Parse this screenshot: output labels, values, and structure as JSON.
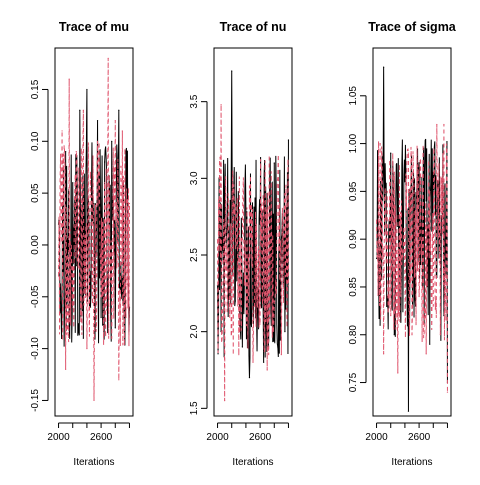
{
  "colors": {
    "chain_1": "#000000",
    "chain_2": "#DF536B",
    "background": "#FFFFFF",
    "axes": "#000000"
  },
  "chart_data": [
    {
      "type": "line",
      "title": "Trace of mu",
      "xlabel": "Iterations",
      "ylabel": "",
      "xlim": [
        1950,
        3050
      ],
      "ylim": [
        -0.165,
        0.19
      ],
      "x_ticks": [
        2000,
        2600
      ],
      "y_ticks": [
        -0.15,
        -0.1,
        -0.05,
        0.0,
        0.05,
        0.1,
        0.15
      ],
      "y_tick_labels": [
        "-0.15",
        "-0.10",
        "-0.05",
        "0.00",
        "0.05",
        "0.10",
        "0.15"
      ],
      "series": [
        {
          "line_style": "solid",
          "color": "#000000",
          "x": [
            2000,
            2050,
            2100,
            2150,
            2200,
            2250,
            2300,
            2350,
            2400,
            2450,
            2500,
            2550,
            2600,
            2650,
            2700,
            2750,
            2800,
            2850,
            2900,
            2950,
            3000
          ],
          "values": [
            0.02,
            -0.05,
            0.09,
            -0.08,
            0.06,
            -0.02,
            0.13,
            -0.09,
            0.15,
            -0.06,
            0.04,
            0.12,
            -0.07,
            0.08,
            -0.04,
            0.1,
            -0.08,
            0.13,
            -0.03,
            0.09,
            -0.06
          ]
        },
        {
          "line_style": "dashed",
          "color": "#DF536B",
          "x": [
            2000,
            2050,
            2100,
            2150,
            2200,
            2250,
            2300,
            2350,
            2400,
            2450,
            2500,
            2550,
            2600,
            2650,
            2700,
            2750,
            2800,
            2850,
            2900,
            2950,
            3000
          ],
          "values": [
            -0.03,
            0.11,
            -0.12,
            0.16,
            -0.06,
            0.09,
            -0.04,
            0.13,
            -0.1,
            0.07,
            -0.15,
            0.1,
            -0.05,
            0.06,
            0.18,
            -0.09,
            0.12,
            -0.13,
            0.11,
            -0.07,
            0.04
          ]
        }
      ]
    },
    {
      "type": "line",
      "title": "Trace of nu",
      "xlabel": "Iterations",
      "ylabel": "",
      "xlim": [
        1950,
        3050
      ],
      "ylim": [
        1.45,
        3.85
      ],
      "x_ticks": [
        2000,
        2600
      ],
      "y_ticks": [
        1.5,
        2.0,
        2.5,
        3.0,
        3.5
      ],
      "y_tick_labels": [
        "1.5",
        "2.0",
        "2.5",
        "3.0",
        "3.5"
      ],
      "series": [
        {
          "line_style": "solid",
          "color": "#000000",
          "x": [
            2000,
            2050,
            2100,
            2150,
            2200,
            2250,
            2300,
            2350,
            2400,
            2450,
            2500,
            2550,
            2600,
            2650,
            2700,
            2750,
            2800,
            2850,
            2900,
            2950,
            3000
          ],
          "values": [
            2.3,
            2.0,
            2.9,
            2.1,
            3.7,
            2.2,
            2.6,
            1.9,
            2.8,
            1.7,
            2.5,
            2.1,
            2.7,
            1.8,
            2.9,
            2.2,
            3.1,
            1.9,
            2.6,
            2.0,
            3.25
          ]
        },
        {
          "line_style": "dashed",
          "color": "#DF536B",
          "x": [
            2000,
            2050,
            2100,
            2150,
            2200,
            2250,
            2300,
            2350,
            2400,
            2450,
            2500,
            2550,
            2600,
            2650,
            2700,
            2750,
            2800,
            2850,
            2900,
            2950,
            3000
          ],
          "values": [
            2.6,
            3.48,
            1.55,
            2.9,
            2.0,
            2.75,
            1.85,
            2.6,
            2.2,
            2.95,
            1.8,
            2.7,
            2.05,
            2.85,
            1.75,
            2.6,
            2.2,
            3.0,
            1.85,
            2.9,
            2.3
          ]
        }
      ]
    },
    {
      "type": "line",
      "title": "Trace of sigma",
      "xlabel": "Iterations",
      "ylabel": "",
      "xlim": [
        1950,
        3050
      ],
      "ylim": [
        0.715,
        1.1
      ],
      "x_ticks": [
        2000,
        2600
      ],
      "y_ticks": [
        0.75,
        0.8,
        0.85,
        0.9,
        0.95,
        1.0,
        1.05
      ],
      "y_tick_labels": [
        "0.75",
        "0.80",
        "0.85",
        "0.90",
        "0.95",
        "1.00",
        "1.05"
      ],
      "series": [
        {
          "line_style": "solid",
          "color": "#000000",
          "x": [
            2000,
            2050,
            2100,
            2150,
            2200,
            2250,
            2300,
            2350,
            2400,
            2450,
            2500,
            2550,
            2600,
            2650,
            2700,
            2750,
            2800,
            2850,
            2900,
            2950,
            3000
          ],
          "values": [
            0.88,
            0.81,
            1.08,
            0.84,
            0.99,
            0.8,
            0.93,
            0.86,
            0.96,
            0.72,
            0.92,
            0.83,
            0.98,
            0.85,
            0.94,
            0.79,
            0.97,
            0.86,
            0.91,
            0.82,
            0.75
          ]
        },
        {
          "line_style": "dashed",
          "color": "#DF536B",
          "x": [
            2000,
            2050,
            2100,
            2150,
            2200,
            2250,
            2300,
            2350,
            2400,
            2450,
            2500,
            2550,
            2600,
            2650,
            2700,
            2750,
            2800,
            2850,
            2900,
            2950,
            3000
          ],
          "values": [
            0.92,
            1.0,
            0.78,
            0.95,
            0.82,
            0.97,
            0.76,
            0.94,
            0.86,
            0.99,
            0.8,
            0.93,
            0.84,
            0.96,
            0.78,
            0.95,
            0.83,
            1.02,
            0.8,
            1.02,
            0.74
          ]
        }
      ]
    }
  ]
}
